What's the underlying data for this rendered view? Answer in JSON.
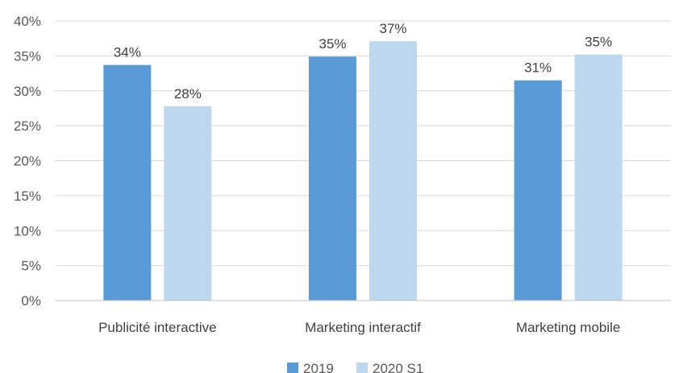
{
  "chart_data": {
    "type": "bar",
    "title": "",
    "xlabel": "",
    "ylabel": "",
    "categories": [
      "Publicité interactive",
      "Marketing interactif",
      "Marketing mobile"
    ],
    "series": [
      {
        "name": "2019",
        "color": "#5b9bd5",
        "values": [
          33.7,
          34.9,
          31.5
        ],
        "labels": [
          "34%",
          "35%",
          "31%"
        ]
      },
      {
        "name": "2020 S1",
        "color": "#bdd7ee",
        "values": [
          27.8,
          37.1,
          35.2
        ],
        "labels": [
          "28%",
          "37%",
          "35%"
        ]
      }
    ],
    "ylim": [
      0,
      40
    ],
    "yticks": [
      {
        "value": 0,
        "label": "0%"
      },
      {
        "value": 5,
        "label": "5%"
      },
      {
        "value": 10,
        "label": "10%"
      },
      {
        "value": 15,
        "label": "15%"
      },
      {
        "value": 20,
        "label": "20%"
      },
      {
        "value": 25,
        "label": "25%"
      },
      {
        "value": 30,
        "label": "30%"
      },
      {
        "value": 35,
        "label": "35%"
      },
      {
        "value": 40,
        "label": "40%"
      }
    ],
    "grid": true,
    "legend": "bottom"
  }
}
